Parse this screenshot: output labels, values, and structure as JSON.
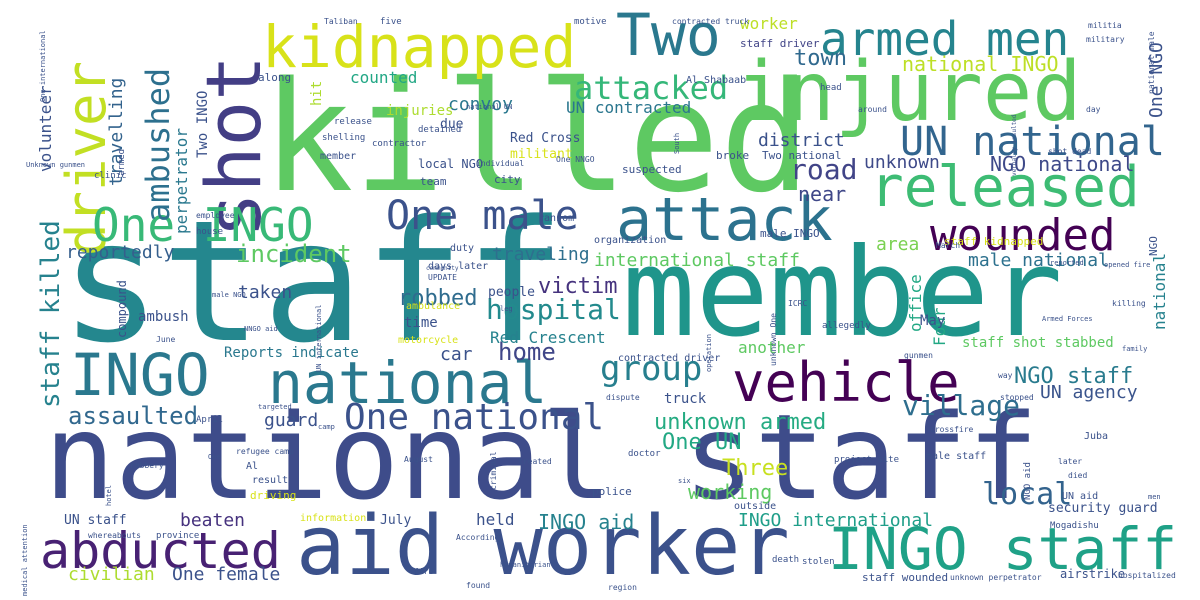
{
  "words": [
    {
      "text": "staff",
      "color": "#24878e"
    },
    {
      "text": "member",
      "color": "#1f958b"
    },
    {
      "text": "killed",
      "color": "#5ec962"
    },
    {
      "text": "national staff",
      "color": "#3e4c8a"
    },
    {
      "text": "aid worker",
      "color": "#3b518b"
    },
    {
      "text": "injured",
      "color": "#5ec962"
    },
    {
      "text": "shot",
      "color": "#433e85"
    },
    {
      "text": "kidnapped",
      "color": "#d8e219"
    },
    {
      "text": "Two",
      "color": "#2a788e"
    },
    {
      "text": "driver",
      "color": "#c2df23"
    },
    {
      "text": "attack",
      "color": "#2c728e"
    },
    {
      "text": "released",
      "color": "#3dbc74"
    },
    {
      "text": "INGO staff",
      "color": "#1fa187"
    },
    {
      "text": "vehicle",
      "color": "#440154"
    },
    {
      "text": "INGO",
      "color": "#2a788e"
    },
    {
      "text": "national",
      "color": "#2a788e"
    },
    {
      "text": "abducted",
      "color": "#482173"
    },
    {
      "text": "One INGO",
      "color": "#38b977"
    },
    {
      "text": "One male",
      "color": "#3b528b"
    },
    {
      "text": "armed men",
      "color": "#25848e"
    },
    {
      "text": "UN national",
      "color": "#32658e"
    },
    {
      "text": "wounded",
      "color": "#440154"
    },
    {
      "text": "attacked",
      "color": "#35b779"
    },
    {
      "text": "One national",
      "color": "#3b528b"
    },
    {
      "text": "group",
      "color": "#277f8e"
    },
    {
      "text": "ambushed",
      "color": "#2d708e"
    },
    {
      "text": "staff killed",
      "color": "#26828e"
    },
    {
      "text": "hospital",
      "color": "#238a8d"
    },
    {
      "text": "home",
      "color": "#404688"
    },
    {
      "text": "village",
      "color": "#2e6e8e"
    },
    {
      "text": "incident",
      "color": "#5ec962"
    },
    {
      "text": "assaulted",
      "color": "#31688e"
    },
    {
      "text": "unknown armed",
      "color": "#25ab82"
    },
    {
      "text": "NGO staff",
      "color": "#297b8e"
    },
    {
      "text": "road",
      "color": "#414487"
    },
    {
      "text": "One UN",
      "color": "#22a884"
    },
    {
      "text": "Three",
      "color": "#c8e020"
    },
    {
      "text": "local",
      "color": "#33638d"
    },
    {
      "text": "robbed",
      "color": "#2f6c8e"
    },
    {
      "text": "victim",
      "color": "#46337e"
    },
    {
      "text": "civilian",
      "color": "#addc30"
    },
    {
      "text": "One female",
      "color": "#3b528b"
    },
    {
      "text": "INGO aid",
      "color": "#26828e"
    },
    {
      "text": "beaten",
      "color": "#46327e"
    },
    {
      "text": "INGO international",
      "color": "#1f9e89"
    },
    {
      "text": "working",
      "color": "#5ec962"
    },
    {
      "text": "town",
      "color": "#30698e"
    },
    {
      "text": "national INGO",
      "color": "#bddf26"
    },
    {
      "text": "NGO national",
      "color": "#3e4989"
    },
    {
      "text": "district",
      "color": "#3b528b"
    },
    {
      "text": "unknown",
      "color": "#3e4a89"
    },
    {
      "text": "near",
      "color": "#3f4788"
    },
    {
      "text": "area",
      "color": "#7ad151"
    },
    {
      "text": "male national",
      "color": "#2d718e"
    },
    {
      "text": "international staff",
      "color": "#5ec962"
    },
    {
      "text": "reportedly",
      "color": "#355f8d"
    },
    {
      "text": "taken",
      "color": "#3b528b"
    },
    {
      "text": "UN agency",
      "color": "#3a548c"
    },
    {
      "text": "guard",
      "color": "#3b528b"
    },
    {
      "text": "convoy",
      "color": "#2a788e"
    },
    {
      "text": "traveling",
      "color": "#2e6f8e"
    },
    {
      "text": "counted",
      "color": "#22a785"
    },
    {
      "text": "UN contracted",
      "color": "#2a768e"
    },
    {
      "text": "travelling",
      "color": "#33638d"
    },
    {
      "text": "perpetrator",
      "color": "#2a788e"
    },
    {
      "text": "volunteer",
      "color": "#3b528b"
    },
    {
      "text": "Two INGO",
      "color": "#3b528b"
    },
    {
      "text": "worker",
      "color": "#bddf26"
    },
    {
      "text": "staff driver",
      "color": "#414487"
    },
    {
      "text": "One NGO",
      "color": "#3b528b"
    },
    {
      "text": "Four",
      "color": "#22a884"
    },
    {
      "text": "office",
      "color": "#22a884"
    },
    {
      "text": "national",
      "color": "#26828e"
    },
    {
      "text": "another",
      "color": "#5ec962"
    },
    {
      "text": "car",
      "color": "#3b528b"
    },
    {
      "text": "Red Crescent",
      "color": "#26828e"
    },
    {
      "text": "Reports indicate",
      "color": "#2a788e"
    },
    {
      "text": "ambush",
      "color": "#3b528b"
    },
    {
      "text": "time",
      "color": "#3b528b"
    },
    {
      "text": "people",
      "color": "#3b528b"
    },
    {
      "text": "held",
      "color": "#3b528b"
    },
    {
      "text": "truck",
      "color": "#3b528b"
    },
    {
      "text": "May",
      "color": "#3b528b"
    },
    {
      "text": "staff shot stabbed",
      "color": "#5ec962"
    },
    {
      "text": "security guard",
      "color": "#3b528b"
    },
    {
      "text": "UN staff",
      "color": "#3b528b"
    },
    {
      "text": "July",
      "color": "#3b528b"
    },
    {
      "text": "Al Shabaab",
      "color": "#3b528b"
    },
    {
      "text": "injuries",
      "color": "#addc30"
    },
    {
      "text": "due",
      "color": "#3b528b"
    },
    {
      "text": "Red Cross",
      "color": "#3b528b"
    },
    {
      "text": "hit",
      "color": "#addc30"
    },
    {
      "text": "along",
      "color": "#3b528b"
    },
    {
      "text": "militant",
      "color": "#d8e219"
    },
    {
      "text": "suspected",
      "color": "#3b528b"
    },
    {
      "text": "broke",
      "color": "#3b528b"
    },
    {
      "text": "Two national",
      "color": "#3b528b"
    },
    {
      "text": "local NGO",
      "color": "#3b528b"
    },
    {
      "text": "team",
      "color": "#3b528b"
    },
    {
      "text": "city",
      "color": "#3b528b"
    },
    {
      "text": "member",
      "color": "#3b528b"
    },
    {
      "text": "contractor",
      "color": "#3b528b"
    },
    {
      "text": "detained",
      "color": "#3b528b"
    },
    {
      "text": "release",
      "color": "#3b528b"
    },
    {
      "text": "shelling",
      "color": "#3b528b"
    },
    {
      "text": "individual",
      "color": "#3b528b"
    },
    {
      "text": "One NNGO",
      "color": "#3b528b"
    },
    {
      "text": "ransom",
      "color": "#3b528b"
    },
    {
      "text": "male INGO",
      "color": "#3b528b"
    },
    {
      "text": "organization",
      "color": "#3b528b"
    },
    {
      "text": "duty",
      "color": "#3b528b"
    },
    {
      "text": "days later",
      "color": "#3b528b"
    },
    {
      "text": "house",
      "color": "#3b528b"
    },
    {
      "text": "employee",
      "color": "#3b528b"
    },
    {
      "text": "staff kidnapped",
      "color": "#d8e219"
    },
    {
      "text": "ambulance",
      "color": "#d8e219"
    },
    {
      "text": "motorcycle",
      "color": "#d8e219"
    },
    {
      "text": "allegedly",
      "color": "#3b528b"
    },
    {
      "text": "contracted driver",
      "color": "#3b528b"
    },
    {
      "text": "result",
      "color": "#3b528b"
    },
    {
      "text": "driving",
      "color": "#d8e219"
    },
    {
      "text": "police",
      "color": "#3b528b"
    },
    {
      "text": "information",
      "color": "#d8e219"
    },
    {
      "text": "outside",
      "color": "#3b528b"
    },
    {
      "text": "staff wounded",
      "color": "#3b528b"
    },
    {
      "text": "airstrike",
      "color": "#3b528b"
    },
    {
      "text": "hospitalized",
      "color": "#3b528b"
    },
    {
      "text": "Mogadishu",
      "color": "#3b528b"
    },
    {
      "text": "UN aid",
      "color": "#3b528b"
    },
    {
      "text": "male staff",
      "color": "#3b528b"
    },
    {
      "text": "Juba",
      "color": "#3b528b"
    },
    {
      "text": "crossfire",
      "color": "#3b528b"
    },
    {
      "text": "project site",
      "color": "#3b528b"
    },
    {
      "text": "Al",
      "color": "#3b528b"
    },
    {
      "text": "refugee camp",
      "color": "#3b528b"
    },
    {
      "text": "doctor",
      "color": "#3b528b"
    },
    {
      "text": "August",
      "color": "#3b528b"
    },
    {
      "text": "treated",
      "color": "#3b528b"
    },
    {
      "text": "According",
      "color": "#3b528b"
    },
    {
      "text": "fire",
      "color": "#3b528b"
    },
    {
      "text": "found",
      "color": "#3b528b"
    },
    {
      "text": "death",
      "color": "#3b528b"
    },
    {
      "text": "stolen",
      "color": "#3b528b"
    },
    {
      "text": "region",
      "color": "#3b528b"
    },
    {
      "text": "unknown perpetrator",
      "color": "#3b528b"
    },
    {
      "text": "province",
      "color": "#3b528b"
    },
    {
      "text": "whereabouts",
      "color": "#3b528b"
    },
    {
      "text": "robbery",
      "color": "#3b528b"
    },
    {
      "text": "April",
      "color": "#3b528b"
    },
    {
      "text": "June",
      "color": "#3b528b"
    },
    {
      "text": "compound",
      "color": "#3b528b"
    },
    {
      "text": "clinic",
      "color": "#3b528b"
    },
    {
      "text": "Taliban",
      "color": "#3b528b"
    },
    {
      "text": "five",
      "color": "#3b528b"
    },
    {
      "text": "motive",
      "color": "#3b528b"
    },
    {
      "text": "contracted truck",
      "color": "#3b528b"
    },
    {
      "text": "militia",
      "color": "#3b528b"
    },
    {
      "text": "military",
      "color": "#3b528b"
    },
    {
      "text": "head",
      "color": "#3b528b"
    },
    {
      "text": "around",
      "color": "#3b528b"
    },
    {
      "text": "shot dead",
      "color": "#3b528b"
    },
    {
      "text": "day",
      "color": "#3b528b"
    },
    {
      "text": "March",
      "color": "#3b528b"
    },
    {
      "text": "reported",
      "color": "#3b528b"
    },
    {
      "text": "opened fire",
      "color": "#3b528b"
    },
    {
      "text": "killing",
      "color": "#3b528b"
    },
    {
      "text": "Armed Forces",
      "color": "#3b528b"
    },
    {
      "text": "family",
      "color": "#3b528b"
    },
    {
      "text": "gunmen",
      "color": "#3b528b"
    },
    {
      "text": "way",
      "color": "#3b528b"
    },
    {
      "text": "stopped",
      "color": "#3b528b"
    },
    {
      "text": "camp",
      "color": "#3b528b"
    },
    {
      "text": "dispute",
      "color": "#3b528b"
    },
    {
      "text": "later",
      "color": "#3b528b"
    },
    {
      "text": "died",
      "color": "#3b528b"
    },
    {
      "text": "men",
      "color": "#3b528b"
    },
    {
      "text": "hotel",
      "color": "#3b528b"
    },
    {
      "text": "criminal",
      "color": "#3b528b"
    },
    {
      "text": "UPDATE",
      "color": "#3b528b"
    },
    {
      "text": "community",
      "color": "#3b528b"
    },
    {
      "text": "ICRC",
      "color": "#3b528b"
    },
    {
      "text": "male NGO",
      "color": "#3b528b"
    },
    {
      "text": "NNGO aid",
      "color": "#3b528b"
    },
    {
      "text": "Unknown gunmen",
      "color": "#3b528b"
    },
    {
      "text": "One",
      "color": "#3b528b"
    },
    {
      "text": "targeted",
      "color": "#3b528b"
    },
    {
      "text": "humanitarian",
      "color": "#3b528b"
    },
    {
      "text": "operation",
      "color": "#3b528b"
    },
    {
      "text": "six",
      "color": "#3b528b"
    },
    {
      "text": "leg",
      "color": "#3b528b"
    },
    {
      "text": "medical attention",
      "color": "#3b528b"
    },
    {
      "text": "One international",
      "color": "#3b528b"
    },
    {
      "text": "national male",
      "color": "#3b528b"
    },
    {
      "text": "national UN",
      "color": "#3b528b"
    },
    {
      "text": "UN international",
      "color": "#3b528b"
    },
    {
      "text": "unknown One",
      "color": "#3b528b"
    },
    {
      "text": "verbally insulted",
      "color": "#3b528b"
    },
    {
      "text": "South",
      "color": "#3b528b"
    },
    {
      "text": "NGO aid",
      "color": "#3b528b"
    },
    {
      "text": "armed",
      "color": "#3b528b"
    },
    {
      "text": "NGO",
      "color": "#3b528b"
    }
  ]
}
